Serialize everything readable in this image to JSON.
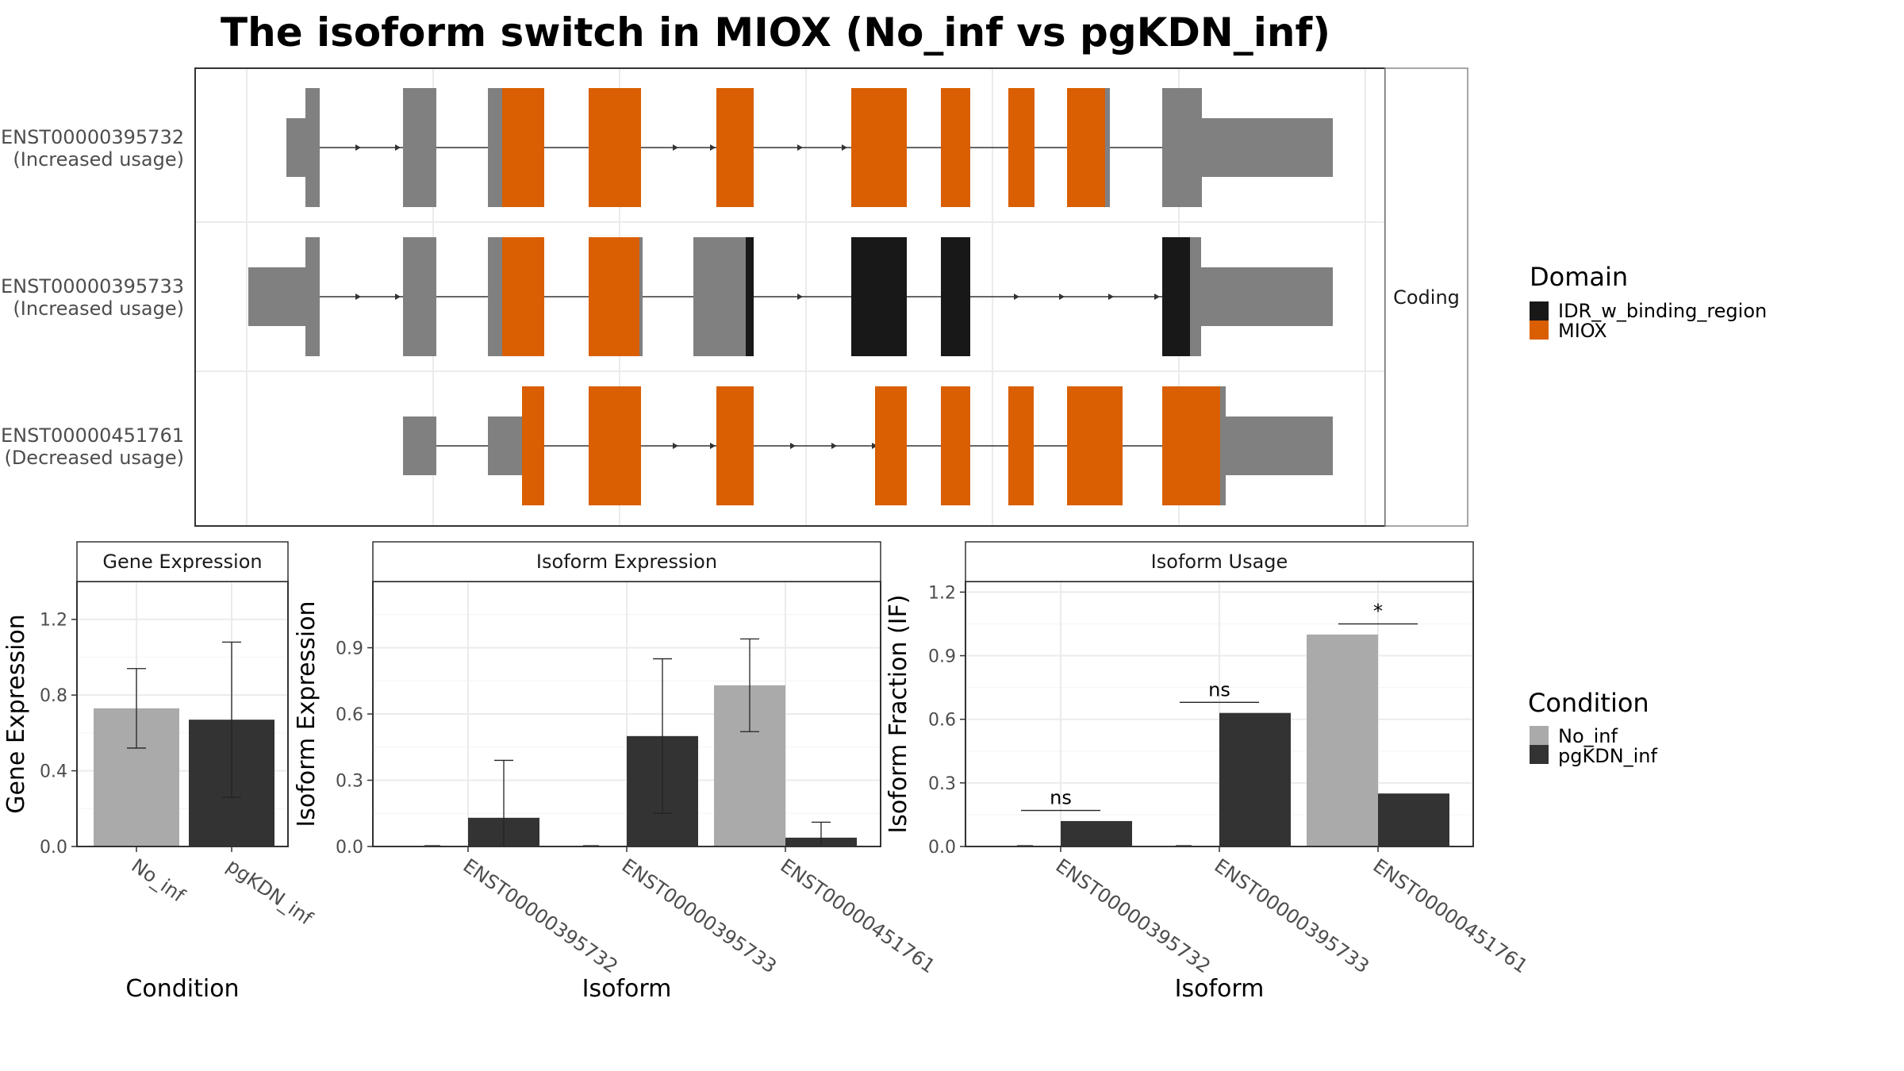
{
  "title": "The isoform switch in MIOX (No_inf vs pgKDN_inf)",
  "colors": {
    "utr": "#808080",
    "miox": "#D95F02",
    "idr": "#181818",
    "no_inf": "#AAAAAA",
    "pgkdn_inf": "#333333",
    "grid": "#EBEBEB",
    "panel_border": "#333333",
    "strip_border": "#555555"
  },
  "structure": {
    "strip_label": "Coding",
    "isoforms": [
      {
        "id": "ENST00000395732",
        "usage": "(Increased usage)"
      },
      {
        "id": "ENST00000395733",
        "usage": "(Increased usage)"
      },
      {
        "id": "ENST00000451761",
        "usage": "(Decreased usage)"
      }
    ]
  },
  "domain_legend": {
    "title": "Domain",
    "items": [
      {
        "label": "IDR_w_binding_region",
        "color": "#181818"
      },
      {
        "label": "MIOX",
        "color": "#D95F02"
      }
    ]
  },
  "condition_legend": {
    "title": "Condition",
    "items": [
      {
        "label": "No_inf",
        "color": "#AAAAAA"
      },
      {
        "label": "pgKDN_inf",
        "color": "#333333"
      }
    ]
  },
  "chart_data": [
    {
      "type": "bar",
      "strip": "Gene Expression",
      "xlabel": "Condition",
      "ylabel": "Gene Expression",
      "ylim": [
        0,
        1.4
      ],
      "yticks": [
        "0.0",
        "0.4",
        "0.8",
        "1.2"
      ],
      "categories": [
        "No_inf",
        "pgKDN_inf"
      ],
      "values": [
        0.73,
        0.67
      ],
      "error_low": [
        0.52,
        0.26
      ],
      "error_high": [
        0.94,
        1.08
      ]
    },
    {
      "type": "bar",
      "strip": "Isoform Expression",
      "xlabel": "Isoform",
      "ylabel": "Isoform Expression",
      "ylim": [
        0,
        1.2
      ],
      "yticks": [
        "0.0",
        "0.3",
        "0.6",
        "0.9"
      ],
      "categories": [
        "ENST00000395732",
        "ENST00000395733",
        "ENST00000451761"
      ],
      "series": [
        {
          "name": "No_inf",
          "values": [
            0.0,
            0.0,
            0.73
          ],
          "error_low": [
            0.0,
            0.0,
            0.52
          ],
          "error_high": [
            0.0,
            0.0,
            0.94
          ]
        },
        {
          "name": "pgKDN_inf",
          "values": [
            0.13,
            0.5,
            0.04
          ],
          "error_low": [
            0.0,
            0.15,
            0.0
          ],
          "error_high": [
            0.39,
            0.85,
            0.11
          ]
        }
      ]
    },
    {
      "type": "bar",
      "strip": "Isoform Usage",
      "xlabel": "Isoform",
      "ylabel": "Isoform Fraction (IF)",
      "ylim": [
        0,
        1.25
      ],
      "yticks": [
        "0.0",
        "0.3",
        "0.6",
        "0.9",
        "1.2"
      ],
      "categories": [
        "ENST00000395732",
        "ENST00000395733",
        "ENST00000451761"
      ],
      "series": [
        {
          "name": "No_inf",
          "values": [
            0.0,
            0.0,
            1.0
          ]
        },
        {
          "name": "pgKDN_inf",
          "values": [
            0.12,
            0.63,
            0.25
          ]
        }
      ],
      "significance": [
        {
          "label": "ns",
          "y": 0.17
        },
        {
          "label": "ns",
          "y": 0.68
        },
        {
          "label": "*",
          "y": 1.05
        }
      ]
    }
  ]
}
